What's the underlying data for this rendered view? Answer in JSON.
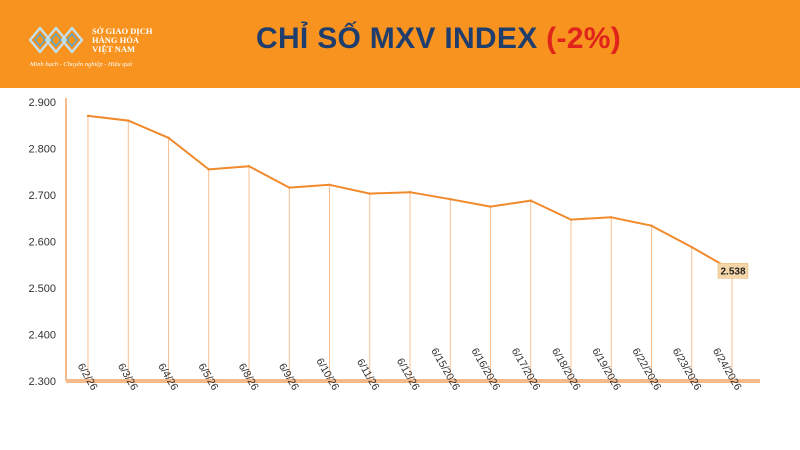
{
  "logo": {
    "lines": [
      "SỞ GIAO DỊCH",
      "HÀNG HÓA",
      "VIỆT NAM"
    ],
    "slogan": "Minh bạch - Chuyên nghiệp - Hiệu quả"
  },
  "title": {
    "main": "CHỈ SỐ MXV INDEX",
    "change": "(-2%)"
  },
  "colors": {
    "header_bg": "#f7931e",
    "title": "#1f3e6d",
    "change": "#e0231b",
    "line": "#f08a2c",
    "label_bg": "#f4d6a8"
  },
  "chart_data": {
    "type": "line",
    "categories": [
      "6/2/26",
      "6/3/26",
      "6/4/26",
      "6/5/26",
      "6/8/26",
      "6/9/26",
      "6/10/26",
      "6/11/26",
      "6/12/26",
      "6/15/2026",
      "6/16/2026",
      "6/17/2026",
      "6/18/2026",
      "6/19/2026",
      "6/22/2026",
      "6/23/2026",
      "6/24/2026"
    ],
    "values": [
      2870,
      2860,
      2823,
      2755,
      2762,
      2716,
      2722,
      2703,
      2706,
      2691,
      2675,
      2688,
      2647,
      2652,
      2634,
      2588,
      2538
    ],
    "yticks": [
      "2.300",
      "2.400",
      "2.500",
      "2.600",
      "2.700",
      "2.800",
      "2.900"
    ],
    "ylim": [
      2300,
      2900
    ],
    "last_label": "2.538",
    "grid": false,
    "drop_lines": true
  }
}
